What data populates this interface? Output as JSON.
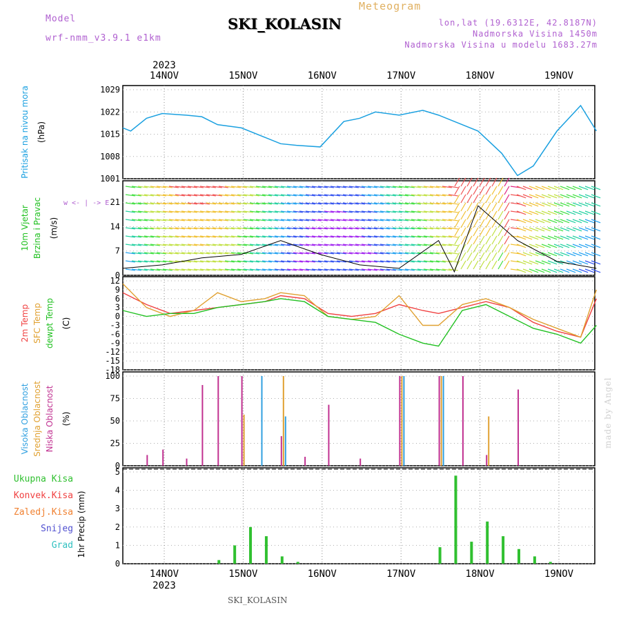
{
  "header": {
    "model_label": "Model",
    "model_name": "wrf-nmm_v3.9.1 e1km",
    "station": "SKI_KOLASIN",
    "title": "Meteogram",
    "lonlat": "lon,lat (19.6312E, 42.8187N)",
    "elev": "Nadmorska Visina 1450m",
    "elev_model": "Nadmorska Visina u modelu 1683.27m",
    "footer_station": "SKI_KOLASIN",
    "credit": "made by Angel"
  },
  "colors": {
    "pressure": "#1aa0e0",
    "temp": "#f04040",
    "sfc": "#e0a030",
    "dewpt": "#20c020",
    "high": "#30a0e0",
    "mid": "#e0a030",
    "low": "#c03090",
    "precip": "#30c030",
    "conv": "#f04040",
    "frz": "#f08030",
    "snow": "#5050d0",
    "grad": "#30c0c0",
    "model": "#b060d0",
    "title_orange": "#e0b060"
  },
  "time_axis": {
    "year": "2023",
    "days": [
      "14NOV",
      "15NOV",
      "16NOV",
      "17NOV",
      "18NOV",
      "19NOV"
    ]
  },
  "chart_data": [
    {
      "type": "line",
      "title": "",
      "ylabel": [
        "Pritisak na nivou mora",
        "(hPa)"
      ],
      "ylim": [
        1001,
        1029
      ],
      "yticks": [
        "1029",
        "1022",
        "1015",
        "1008",
        "1001"
      ],
      "series": [
        {
          "values_x_days": [
            0,
            0.1,
            0.3,
            0.5,
            0.8,
            1.0,
            1.2,
            1.5,
            1.8,
            2.0,
            2.2,
            2.5,
            2.8,
            3.0,
            3.2,
            3.5,
            3.8,
            4.0,
            4.2,
            4.5,
            4.8,
            5.0,
            5.2,
            5.5,
            5.8,
            6.0
          ],
          "values": [
            1017,
            1016,
            1020,
            1021.5,
            1021,
            1020.5,
            1018,
            1017,
            1014,
            1012,
            1011.5,
            1011,
            1019,
            1020,
            1022,
            1021,
            1022.5,
            1021,
            1019,
            1016,
            1009,
            1002,
            1005,
            1016,
            1024,
            1016
          ]
        }
      ]
    },
    {
      "type": "line",
      "ylabel": [
        "10m Vjetar",
        "Brzina i Pravac",
        "(m/s)"
      ],
      "legend": "w <- | -> E",
      "ylim": [
        0,
        26
      ],
      "yticks": [
        "21",
        "14",
        "7",
        "0"
      ],
      "series": [
        {
          "values_x_days": [
            0,
            0.5,
            1.0,
            1.5,
            2.0,
            2.5,
            3.0,
            3.5,
            4.0,
            4.2,
            4.5,
            5.0,
            5.5,
            6.0
          ],
          "values": [
            2,
            3,
            5,
            6,
            10,
            6,
            3,
            2,
            10,
            1,
            20,
            10,
            4,
            2
          ]
        }
      ]
    },
    {
      "type": "line",
      "ylabel": [
        "2m Temp",
        "SFC Temp",
        "dewpt Temp",
        "(C)"
      ],
      "ylim": [
        -18,
        12
      ],
      "yticks": [
        "12",
        "9",
        "6",
        "3",
        "0",
        "-3",
        "-6",
        "-9",
        "-12",
        "-15",
        "-18"
      ],
      "series": [
        {
          "name": "2m Temp",
          "values_x_days": [
            0,
            0.3,
            0.6,
            0.9,
            1.2,
            1.5,
            1.8,
            2.0,
            2.3,
            2.6,
            2.9,
            3.2,
            3.5,
            3.8,
            4.0,
            4.3,
            4.6,
            4.9,
            5.2,
            5.5,
            5.8,
            6.0
          ],
          "values": [
            8,
            4,
            1,
            2,
            3,
            4,
            5,
            7,
            6,
            1,
            0,
            1,
            4,
            2,
            1,
            3,
            5,
            3,
            -2,
            -5,
            -7,
            6
          ]
        },
        {
          "name": "SFC Temp",
          "values_x_days": [
            0,
            0.3,
            0.6,
            0.9,
            1.2,
            1.5,
            1.8,
            2.0,
            2.3,
            2.6,
            2.9,
            3.2,
            3.5,
            3.8,
            4.0,
            4.3,
            4.6,
            4.9,
            5.2,
            5.5,
            5.8,
            6.0
          ],
          "values": [
            11,
            3,
            0,
            2,
            8,
            5,
            6,
            8,
            7,
            0,
            -1,
            0,
            7,
            -3,
            -3,
            4,
            6,
            3,
            -1,
            -4,
            -7,
            9
          ]
        },
        {
          "name": "dewpt Temp",
          "values_x_days": [
            0,
            0.3,
            0.6,
            0.9,
            1.2,
            1.5,
            1.8,
            2.0,
            2.3,
            2.6,
            2.9,
            3.2,
            3.5,
            3.8,
            4.0,
            4.3,
            4.6,
            4.9,
            5.2,
            5.5,
            5.8,
            6.0
          ],
          "values": [
            2,
            0,
            1,
            1,
            3,
            4,
            5,
            6,
            5,
            0,
            -1,
            -2,
            -6,
            -9,
            -10,
            2,
            4,
            0,
            -4,
            -6,
            -9,
            -3
          ]
        }
      ]
    },
    {
      "type": "bar",
      "ylabel": [
        "Visoka Oblacnost",
        "Srednja Oblacnost",
        "Niska Oblacnost",
        "(%)"
      ],
      "ylim": [
        0,
        100
      ],
      "yticks": [
        "100",
        "75",
        "50",
        "25",
        "0"
      ],
      "series": [
        {
          "name": "Niska Oblacnost",
          "values_x_days": [
            0.3,
            0.5,
            0.8,
            1.0,
            1.2,
            1.5,
            2.0,
            2.3,
            2.6,
            3.0,
            3.5,
            4.0,
            4.3,
            4.6,
            5.0
          ],
          "values": [
            12,
            18,
            8,
            90,
            100,
            100,
            33,
            10,
            68,
            8,
            100,
            100,
            100,
            12,
            85
          ]
        },
        {
          "name": "Srednja Oblacnost",
          "values_x_days": [
            1.5,
            2.0,
            3.5,
            4.0,
            4.6
          ],
          "values": [
            57,
            100,
            100,
            100,
            55
          ]
        },
        {
          "name": "Visoka Oblacnost",
          "values_x_days": [
            1.7,
            2.0,
            3.5,
            4.0
          ],
          "values": [
            100,
            55,
            100,
            100
          ]
        }
      ]
    },
    {
      "type": "bar",
      "ylabel": [
        "1hr Precip (mm)"
      ],
      "legend": [
        "Ukupna Kisa",
        "Konvek.Kisa",
        "Zaledj.Kisa",
        "Snijeg",
        "Grad"
      ],
      "ylim": [
        0,
        5
      ],
      "yticks": [
        "5",
        "4",
        "3",
        "2",
        "1",
        "0"
      ],
      "series": [
        {
          "name": "Ukupna Kisa",
          "values_x_days": [
            1.2,
            1.4,
            1.6,
            1.8,
            2.0,
            2.2,
            2.4,
            4.0,
            4.2,
            4.4,
            4.6,
            4.8,
            5.0,
            5.2,
            5.4
          ],
          "values": [
            0.2,
            1.0,
            2.0,
            1.5,
            0.4,
            0.1,
            0.0,
            0.9,
            4.8,
            1.2,
            2.3,
            1.5,
            0.8,
            0.4,
            0.1
          ]
        }
      ]
    }
  ]
}
